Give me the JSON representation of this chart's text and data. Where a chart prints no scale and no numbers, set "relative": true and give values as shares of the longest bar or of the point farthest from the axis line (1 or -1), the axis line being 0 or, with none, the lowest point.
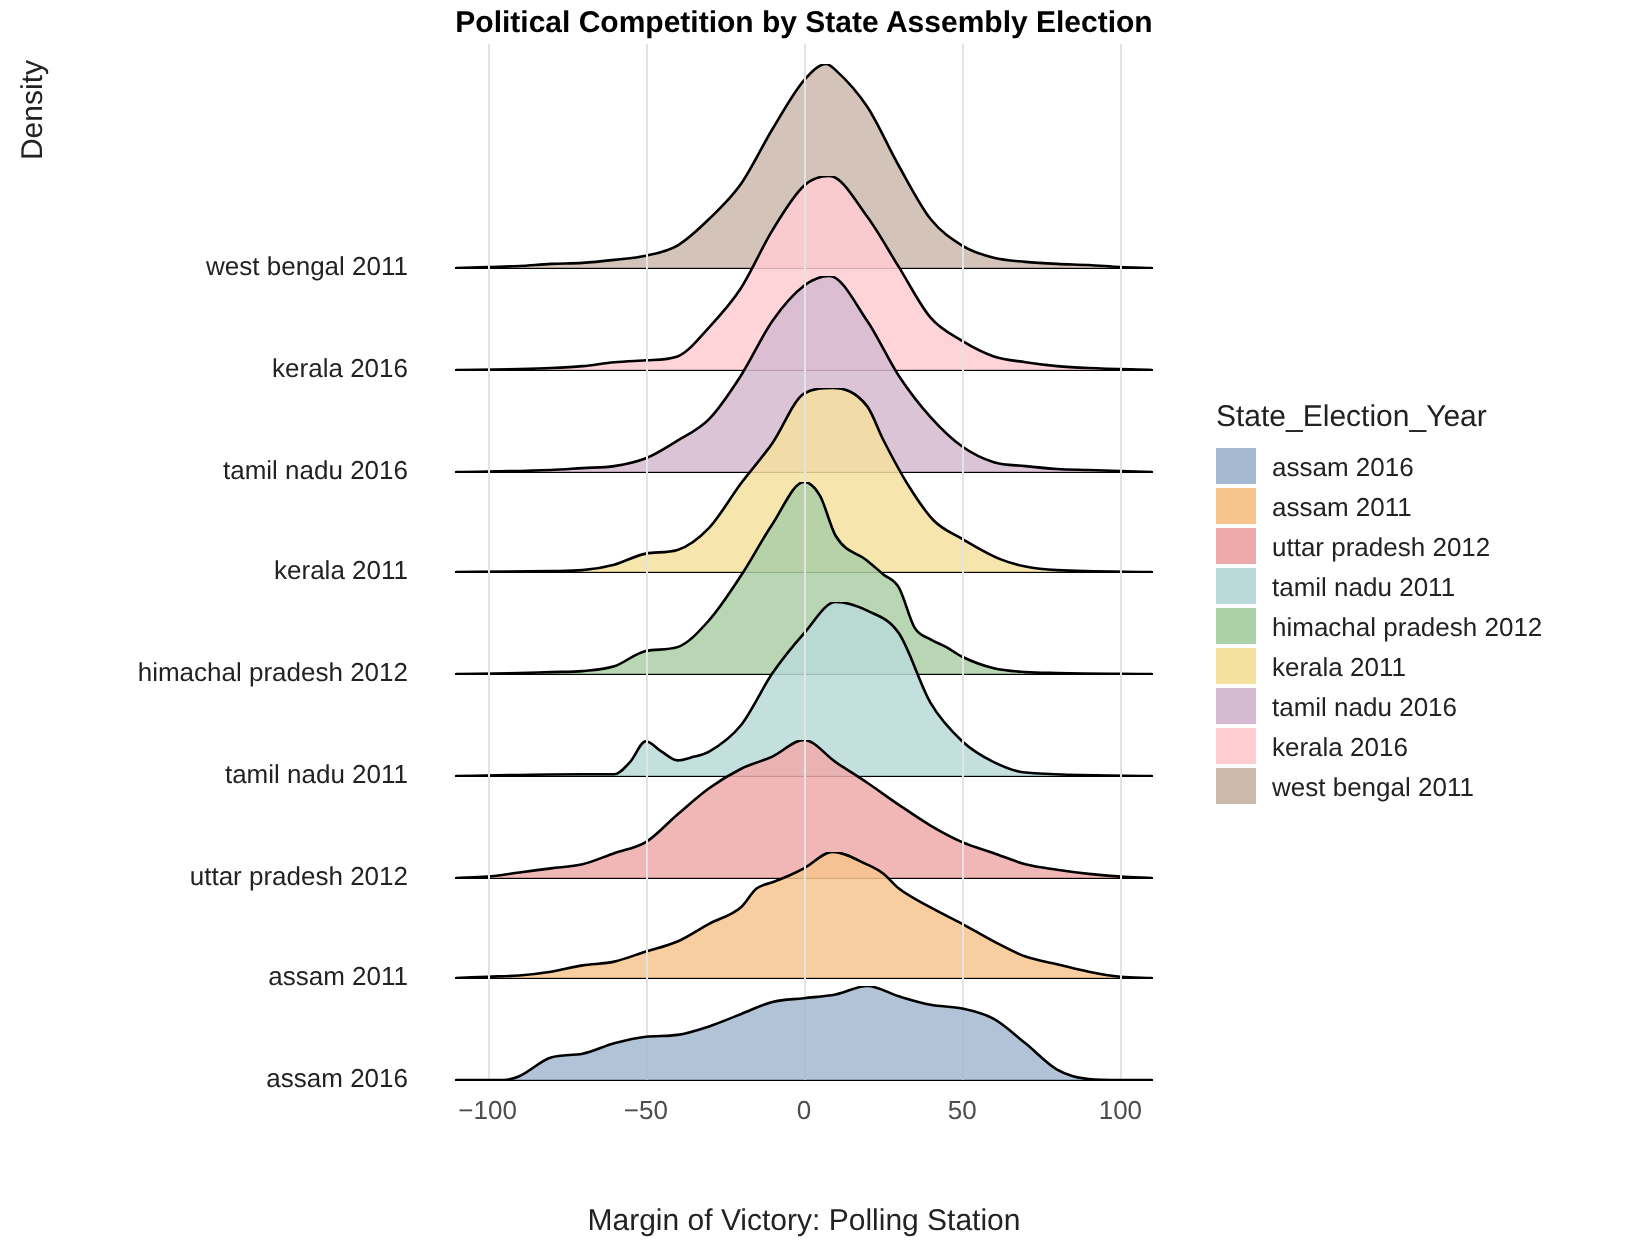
{
  "chart_data": [
    {
      "type": "area",
      "relative": true,
      "title": "Political Competition by State Assembly Election",
      "annotations": [
        "Density"
      ],
      "legend": "right",
      "legend_title": "State_Election_Year",
      "tick_labels": false,
      "xlim": [
        -110,
        110
      ],
      "x": [
        -110,
        -100,
        -90,
        -80,
        -70,
        -60,
        -50,
        -40,
        -30,
        -20,
        -10,
        0,
        7,
        10,
        20,
        30,
        40,
        50,
        60,
        70,
        80,
        90,
        100,
        110
      ],
      "series": [
        {
          "name": "west bengal 2011",
          "color": "#cdb9ab",
          "values": [
            0,
            0.005,
            0.01,
            0.02,
            0.025,
            0.04,
            0.06,
            0.11,
            0.24,
            0.41,
            0.68,
            0.92,
            1,
            0.97,
            0.79,
            0.5,
            0.24,
            0.11,
            0.05,
            0.03,
            0.02,
            0.015,
            0.005,
            0
          ]
        }
      ]
    },
    {
      "type": "area",
      "relative": true,
      "tick_labels": false,
      "xlim": [
        -110,
        110
      ],
      "x": [
        -110,
        -90,
        -80,
        -70,
        -60,
        -50,
        -40,
        -30,
        -20,
        -10,
        0,
        8,
        20,
        30,
        40,
        50,
        60,
        70,
        80,
        90,
        110
      ],
      "series": [
        {
          "name": "kerala 2016",
          "color": "#ffcdd2",
          "values": [
            0,
            0.005,
            0.01,
            0.02,
            0.04,
            0.05,
            0.07,
            0.22,
            0.42,
            0.72,
            0.95,
            1,
            0.79,
            0.53,
            0.27,
            0.15,
            0.07,
            0.04,
            0.02,
            0.01,
            0
          ]
        }
      ]
    },
    {
      "type": "area",
      "relative": true,
      "tick_labels": false,
      "xlim": [
        -110,
        110
      ],
      "x": [
        -110,
        -80,
        -70,
        -60,
        -50,
        -40,
        -30,
        -20,
        -10,
        0,
        8,
        20,
        30,
        40,
        50,
        60,
        70,
        80,
        90,
        100,
        110
      ],
      "series": [
        {
          "name": "tamil nadu 2016",
          "color": "#d6bad0",
          "values": [
            0,
            0.01,
            0.02,
            0.03,
            0.07,
            0.16,
            0.27,
            0.49,
            0.77,
            0.95,
            1,
            0.77,
            0.49,
            0.28,
            0.13,
            0.05,
            0.03,
            0.015,
            0.01,
            0.005,
            0
          ]
        }
      ]
    },
    {
      "type": "area",
      "relative": true,
      "tick_labels": false,
      "xlim": [
        -110,
        110
      ],
      "x": [
        -110,
        -80,
        -70,
        -60,
        -50,
        -40,
        -30,
        -20,
        -10,
        0,
        9,
        20,
        25,
        33,
        41,
        50,
        62,
        70,
        80,
        110
      ],
      "series": [
        {
          "name": "kerala 2011",
          "color": "#f4e09f",
          "values": [
            0,
            0.005,
            0.01,
            0.04,
            0.1,
            0.12,
            0.24,
            0.48,
            0.7,
            0.97,
            1,
            0.9,
            0.72,
            0.47,
            0.28,
            0.18,
            0.07,
            0.03,
            0.01,
            0
          ]
        }
      ]
    },
    {
      "type": "area",
      "relative": true,
      "tick_labels": false,
      "xlim": [
        -110,
        110
      ],
      "x": [
        -110,
        -90,
        -80,
        -70,
        -60,
        -50,
        -40,
        -30,
        -20,
        -10,
        0,
        5,
        10,
        20,
        25,
        30,
        35,
        40,
        45,
        50,
        60,
        70,
        80,
        110
      ],
      "series": [
        {
          "name": "himachal pradesh 2012",
          "color": "#abcfa6",
          "values": [
            0,
            0.005,
            0.01,
            0.015,
            0.04,
            0.12,
            0.14,
            0.28,
            0.51,
            0.78,
            1,
            0.93,
            0.72,
            0.59,
            0.52,
            0.45,
            0.24,
            0.18,
            0.14,
            0.09,
            0.03,
            0.01,
            0.005,
            0
          ]
        }
      ]
    },
    {
      "type": "area",
      "relative": true,
      "tick_labels": false,
      "xlim": [
        -110,
        110
      ],
      "x": [
        -110,
        -70,
        -60,
        -55,
        -50,
        -45,
        -40,
        -35,
        -30,
        -20,
        -10,
        0,
        10,
        20,
        30,
        40,
        50,
        60,
        70,
        110
      ],
      "series": [
        {
          "name": "tamil nadu 2011",
          "color": "#b9dad8",
          "values": [
            0,
            0.01,
            0.01,
            0.08,
            0.2,
            0.14,
            0.09,
            0.11,
            0.14,
            0.29,
            0.59,
            0.82,
            1,
            0.95,
            0.82,
            0.42,
            0.2,
            0.08,
            0.02,
            0
          ]
        }
      ]
    },
    {
      "type": "area",
      "relative": true,
      "tick_labels": false,
      "xlim": [
        -110,
        110
      ],
      "x": [
        -110,
        -100,
        -90,
        -80,
        -70,
        -60,
        -50,
        -40,
        -30,
        -20,
        -10,
        0,
        10,
        20,
        30,
        40,
        50,
        60,
        70,
        80,
        90,
        100,
        110
      ],
      "series": [
        {
          "name": "uttar pradesh 2012",
          "color": "#eeaaaa",
          "values": [
            0,
            0.01,
            0.04,
            0.07,
            0.1,
            0.18,
            0.26,
            0.46,
            0.65,
            0.79,
            0.88,
            1,
            0.84,
            0.69,
            0.53,
            0.38,
            0.26,
            0.18,
            0.1,
            0.06,
            0.03,
            0.01,
            0
          ]
        }
      ]
    },
    {
      "type": "area",
      "relative": true,
      "tick_labels": false,
      "xlim": [
        -110,
        110
      ],
      "x": [
        -110,
        -100,
        -90,
        -80,
        -70,
        -60,
        -50,
        -40,
        -30,
        -20,
        -15,
        -10,
        -5,
        0,
        9,
        20,
        25,
        30,
        40,
        50,
        60,
        70,
        80,
        90,
        100,
        110
      ],
      "series": [
        {
          "name": "assam 2011",
          "color": "#f7c48e",
          "values": [
            0,
            0.01,
            0.02,
            0.05,
            0.1,
            0.13,
            0.21,
            0.29,
            0.43,
            0.56,
            0.71,
            0.76,
            0.81,
            0.87,
            1,
            0.9,
            0.83,
            0.71,
            0.56,
            0.43,
            0.29,
            0.17,
            0.11,
            0.05,
            0.01,
            0
          ]
        }
      ]
    },
    {
      "type": "area",
      "relative": true,
      "grid": "x",
      "tick_labels": "x",
      "xlabel": "Margin of Victory: Polling Station",
      "xlim": [
        -110,
        110
      ],
      "xticks": [
        {
          "value": -100,
          "label": "−100"
        },
        {
          "value": -50,
          "label": "−50"
        },
        0,
        50,
        100
      ],
      "x": [
        -110,
        -95,
        -90,
        -80,
        -70,
        -60,
        -50,
        -40,
        -30,
        -20,
        -10,
        0,
        10,
        20,
        30,
        40,
        50,
        60,
        70,
        80,
        90,
        100,
        110
      ],
      "series": [
        {
          "name": "assam 2016",
          "color": "#a5b9d1",
          "values": [
            0,
            0,
            0.04,
            0.24,
            0.28,
            0.39,
            0.46,
            0.48,
            0.57,
            0.7,
            0.83,
            0.87,
            0.91,
            1,
            0.89,
            0.8,
            0.76,
            0.65,
            0.39,
            0.11,
            0.01,
            0,
            0
          ]
        }
      ]
    }
  ]
}
